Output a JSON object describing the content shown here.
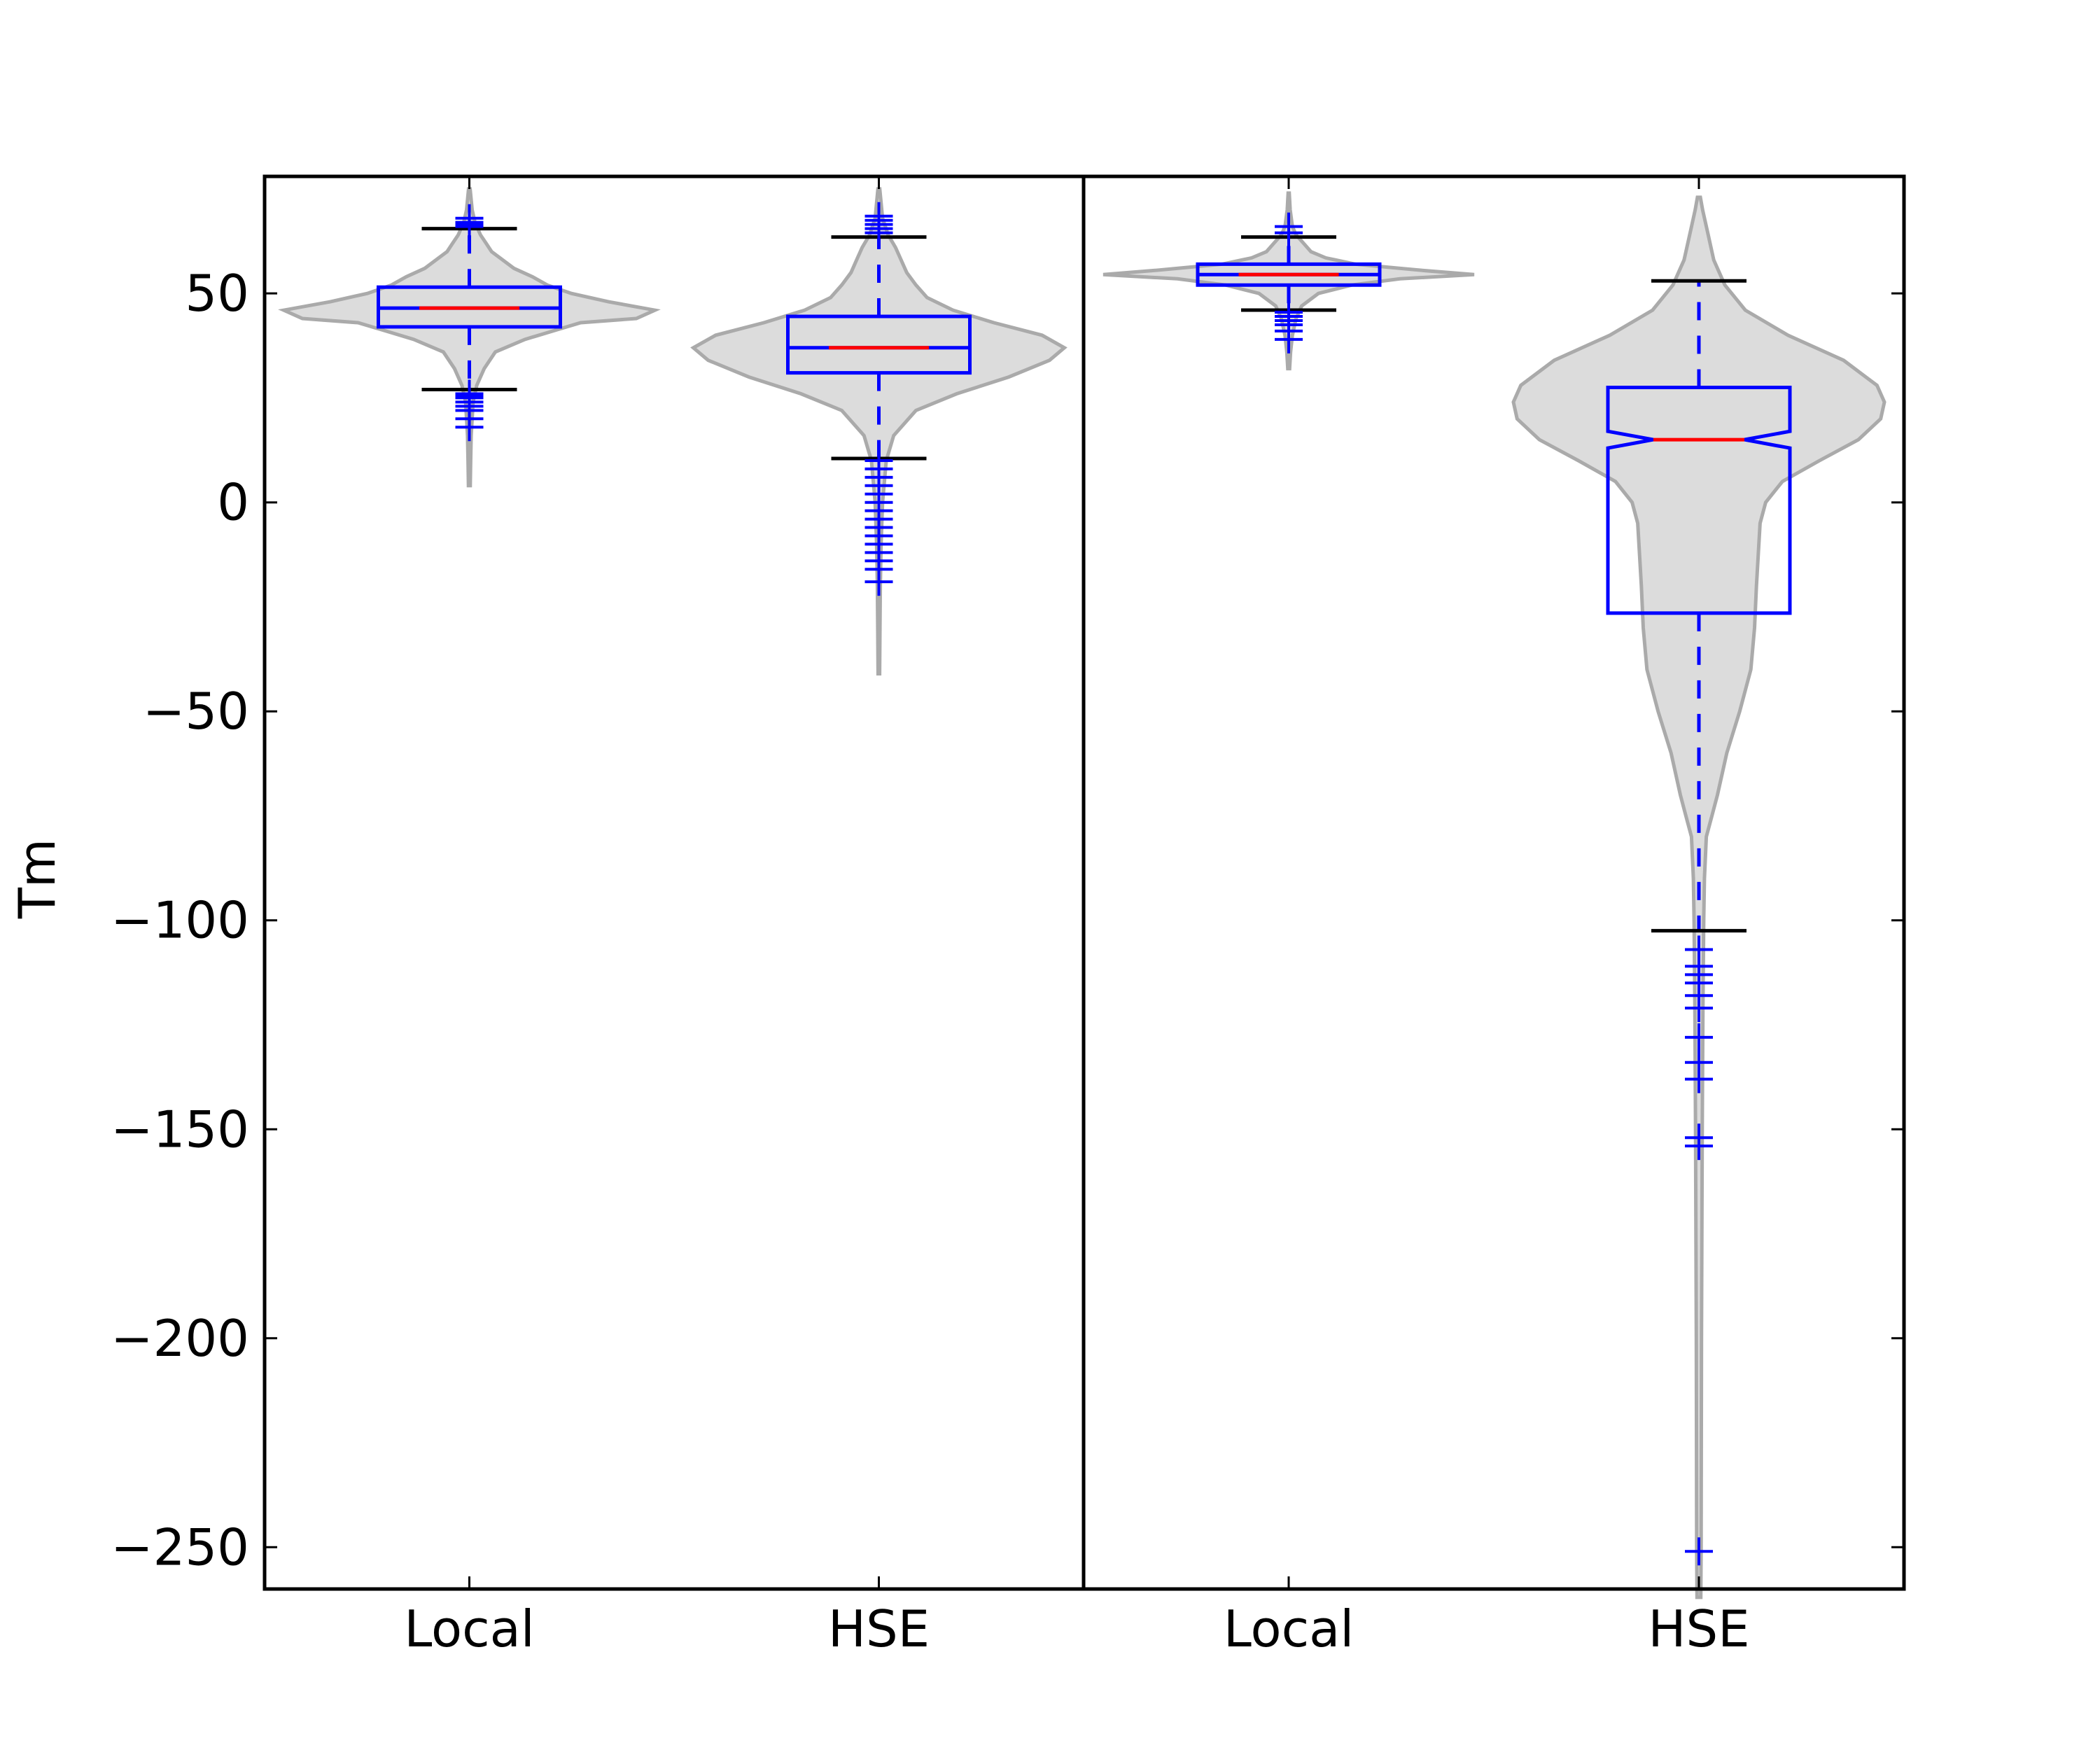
{
  "chart_data": {
    "type": "violin-box",
    "ylabel": "Tm",
    "ylim": [
      -260,
      78
    ],
    "yticks": [
      50,
      0,
      -50,
      -100,
      -150,
      -200,
      -250
    ],
    "grid": false,
    "colors": {
      "violin_fill": "#dcdcdc",
      "violin_edge": "#aaaaaa",
      "box": "#0000ff",
      "median": "#ff0000",
      "cap": "#000000",
      "flier": "#0000ff",
      "frame": "#000000"
    },
    "panels": [
      {
        "categories": [
          {
            "label": "Local",
            "violin_range": [
              4,
              75
            ],
            "violin_profile": [
              [
                4,
                0.005
              ],
              [
                10,
                0.007
              ],
              [
                16,
                0.01
              ],
              [
                20,
                0.015
              ],
              [
                24,
                0.02
              ],
              [
                28,
                0.04
              ],
              [
                32,
                0.08
              ],
              [
                36,
                0.14
              ],
              [
                39,
                0.3
              ],
              [
                41,
                0.45
              ],
              [
                43,
                0.6
              ],
              [
                44,
                0.9
              ],
              [
                46,
                1.0
              ],
              [
                48,
                0.75
              ],
              [
                50,
                0.55
              ],
              [
                52,
                0.42
              ],
              [
                54,
                0.34
              ],
              [
                56,
                0.24
              ],
              [
                58,
                0.18
              ],
              [
                60,
                0.12
              ],
              [
                62,
                0.09
              ],
              [
                64,
                0.06
              ],
              [
                67,
                0.03
              ],
              [
                70,
                0.015
              ],
              [
                75,
                0.004
              ]
            ],
            "whisker_low": 27,
            "q1": 42,
            "median": 46.5,
            "q3": 51.5,
            "whisker_high": 65.5,
            "notch": false,
            "outliers": [
              18,
              20,
              22,
              23,
              24,
              25,
              25.5,
              26,
              66,
              66.5,
              67,
              68
            ]
          },
          {
            "label": "HSE",
            "violin_range": [
              -41,
              75
            ],
            "violin_profile": [
              [
                -41,
                0.004
              ],
              [
                -30,
                0.006
              ],
              [
                -20,
                0.008
              ],
              [
                -10,
                0.012
              ],
              [
                0,
                0.02
              ],
              [
                10,
                0.04
              ],
              [
                16,
                0.08
              ],
              [
                22,
                0.2
              ],
              [
                26,
                0.42
              ],
              [
                30,
                0.7
              ],
              [
                34,
                0.92
              ],
              [
                37,
                1.0
              ],
              [
                40,
                0.88
              ],
              [
                43,
                0.62
              ],
              [
                46,
                0.4
              ],
              [
                49,
                0.26
              ],
              [
                52,
                0.2
              ],
              [
                55,
                0.15
              ],
              [
                58,
                0.12
              ],
              [
                61,
                0.09
              ],
              [
                64,
                0.05
              ],
              [
                68,
                0.02
              ],
              [
                75,
                0.005
              ]
            ],
            "whisker_low": 10.5,
            "q1": 31,
            "median": 37,
            "q3": 44.5,
            "whisker_high": 63.5,
            "notch": false,
            "outliers": [
              -19,
              -16,
              -14,
              -12,
              -10,
              -8,
              -6,
              -4,
              -2,
              0,
              2,
              4,
              6,
              8,
              10,
              64.5,
              65.5,
              66.5,
              67.5,
              68.5
            ]
          }
        ]
      },
      {
        "categories": [
          {
            "label": "Local",
            "violin_range": [
              32,
              74
            ],
            "violin_profile": [
              [
                32,
                0.005
              ],
              [
                36,
                0.01
              ],
              [
                40,
                0.02
              ],
              [
                44,
                0.04
              ],
              [
                47,
                0.07
              ],
              [
                50,
                0.16
              ],
              [
                52,
                0.34
              ],
              [
                53.5,
                0.6
              ],
              [
                54.5,
                1.0
              ],
              [
                55.5,
                0.72
              ],
              [
                57,
                0.36
              ],
              [
                58.5,
                0.2
              ],
              [
                60,
                0.12
              ],
              [
                62,
                0.08
              ],
              [
                64,
                0.04
              ],
              [
                66,
                0.02
              ],
              [
                70,
                0.008
              ],
              [
                74,
                0.003
              ]
            ],
            "whisker_low": 46,
            "q1": 52,
            "median": 54.5,
            "q3": 57,
            "whisker_high": 63.5,
            "notch": false,
            "outliers": [
              39,
              41,
              42.5,
              43.5,
              44.5,
              45.5,
              64.5,
              66
            ]
          },
          {
            "label": "HSE",
            "violin_range": [
              -262,
              73
            ],
            "violin_profile": [
              [
                -262,
                0.01
              ],
              [
                -250,
                0.012
              ],
              [
                -200,
                0.014
              ],
              [
                -150,
                0.018
              ],
              [
                -120,
                0.022
              ],
              [
                -100,
                0.026
              ],
              [
                -90,
                0.03
              ],
              [
                -80,
                0.04
              ],
              [
                -75,
                0.07
              ],
              [
                -70,
                0.1
              ],
              [
                -60,
                0.15
              ],
              [
                -50,
                0.22
              ],
              [
                -40,
                0.28
              ],
              [
                -30,
                0.3
              ],
              [
                -20,
                0.31
              ],
              [
                -5,
                0.33
              ],
              [
                0,
                0.36
              ],
              [
                5,
                0.45
              ],
              [
                10,
                0.65
              ],
              [
                15,
                0.86
              ],
              [
                20,
                0.98
              ],
              [
                24,
                1.0
              ],
              [
                28,
                0.96
              ],
              [
                34,
                0.78
              ],
              [
                40,
                0.48
              ],
              [
                46,
                0.25
              ],
              [
                52,
                0.14
              ],
              [
                58,
                0.08
              ],
              [
                64,
                0.05
              ],
              [
                70,
                0.02
              ],
              [
                73,
                0.008
              ]
            ],
            "whisker_low": -102.5,
            "q1": -26.5,
            "median": 15,
            "q3": 27.5,
            "whisker_high": 53,
            "notch": true,
            "notch_low": 13,
            "notch_high": 17,
            "outliers": [
              -107,
              -111,
              -113,
              -115,
              -118,
              -121,
              -128,
              -134,
              -138,
              -152,
              -154,
              -251
            ]
          }
        ]
      }
    ]
  }
}
